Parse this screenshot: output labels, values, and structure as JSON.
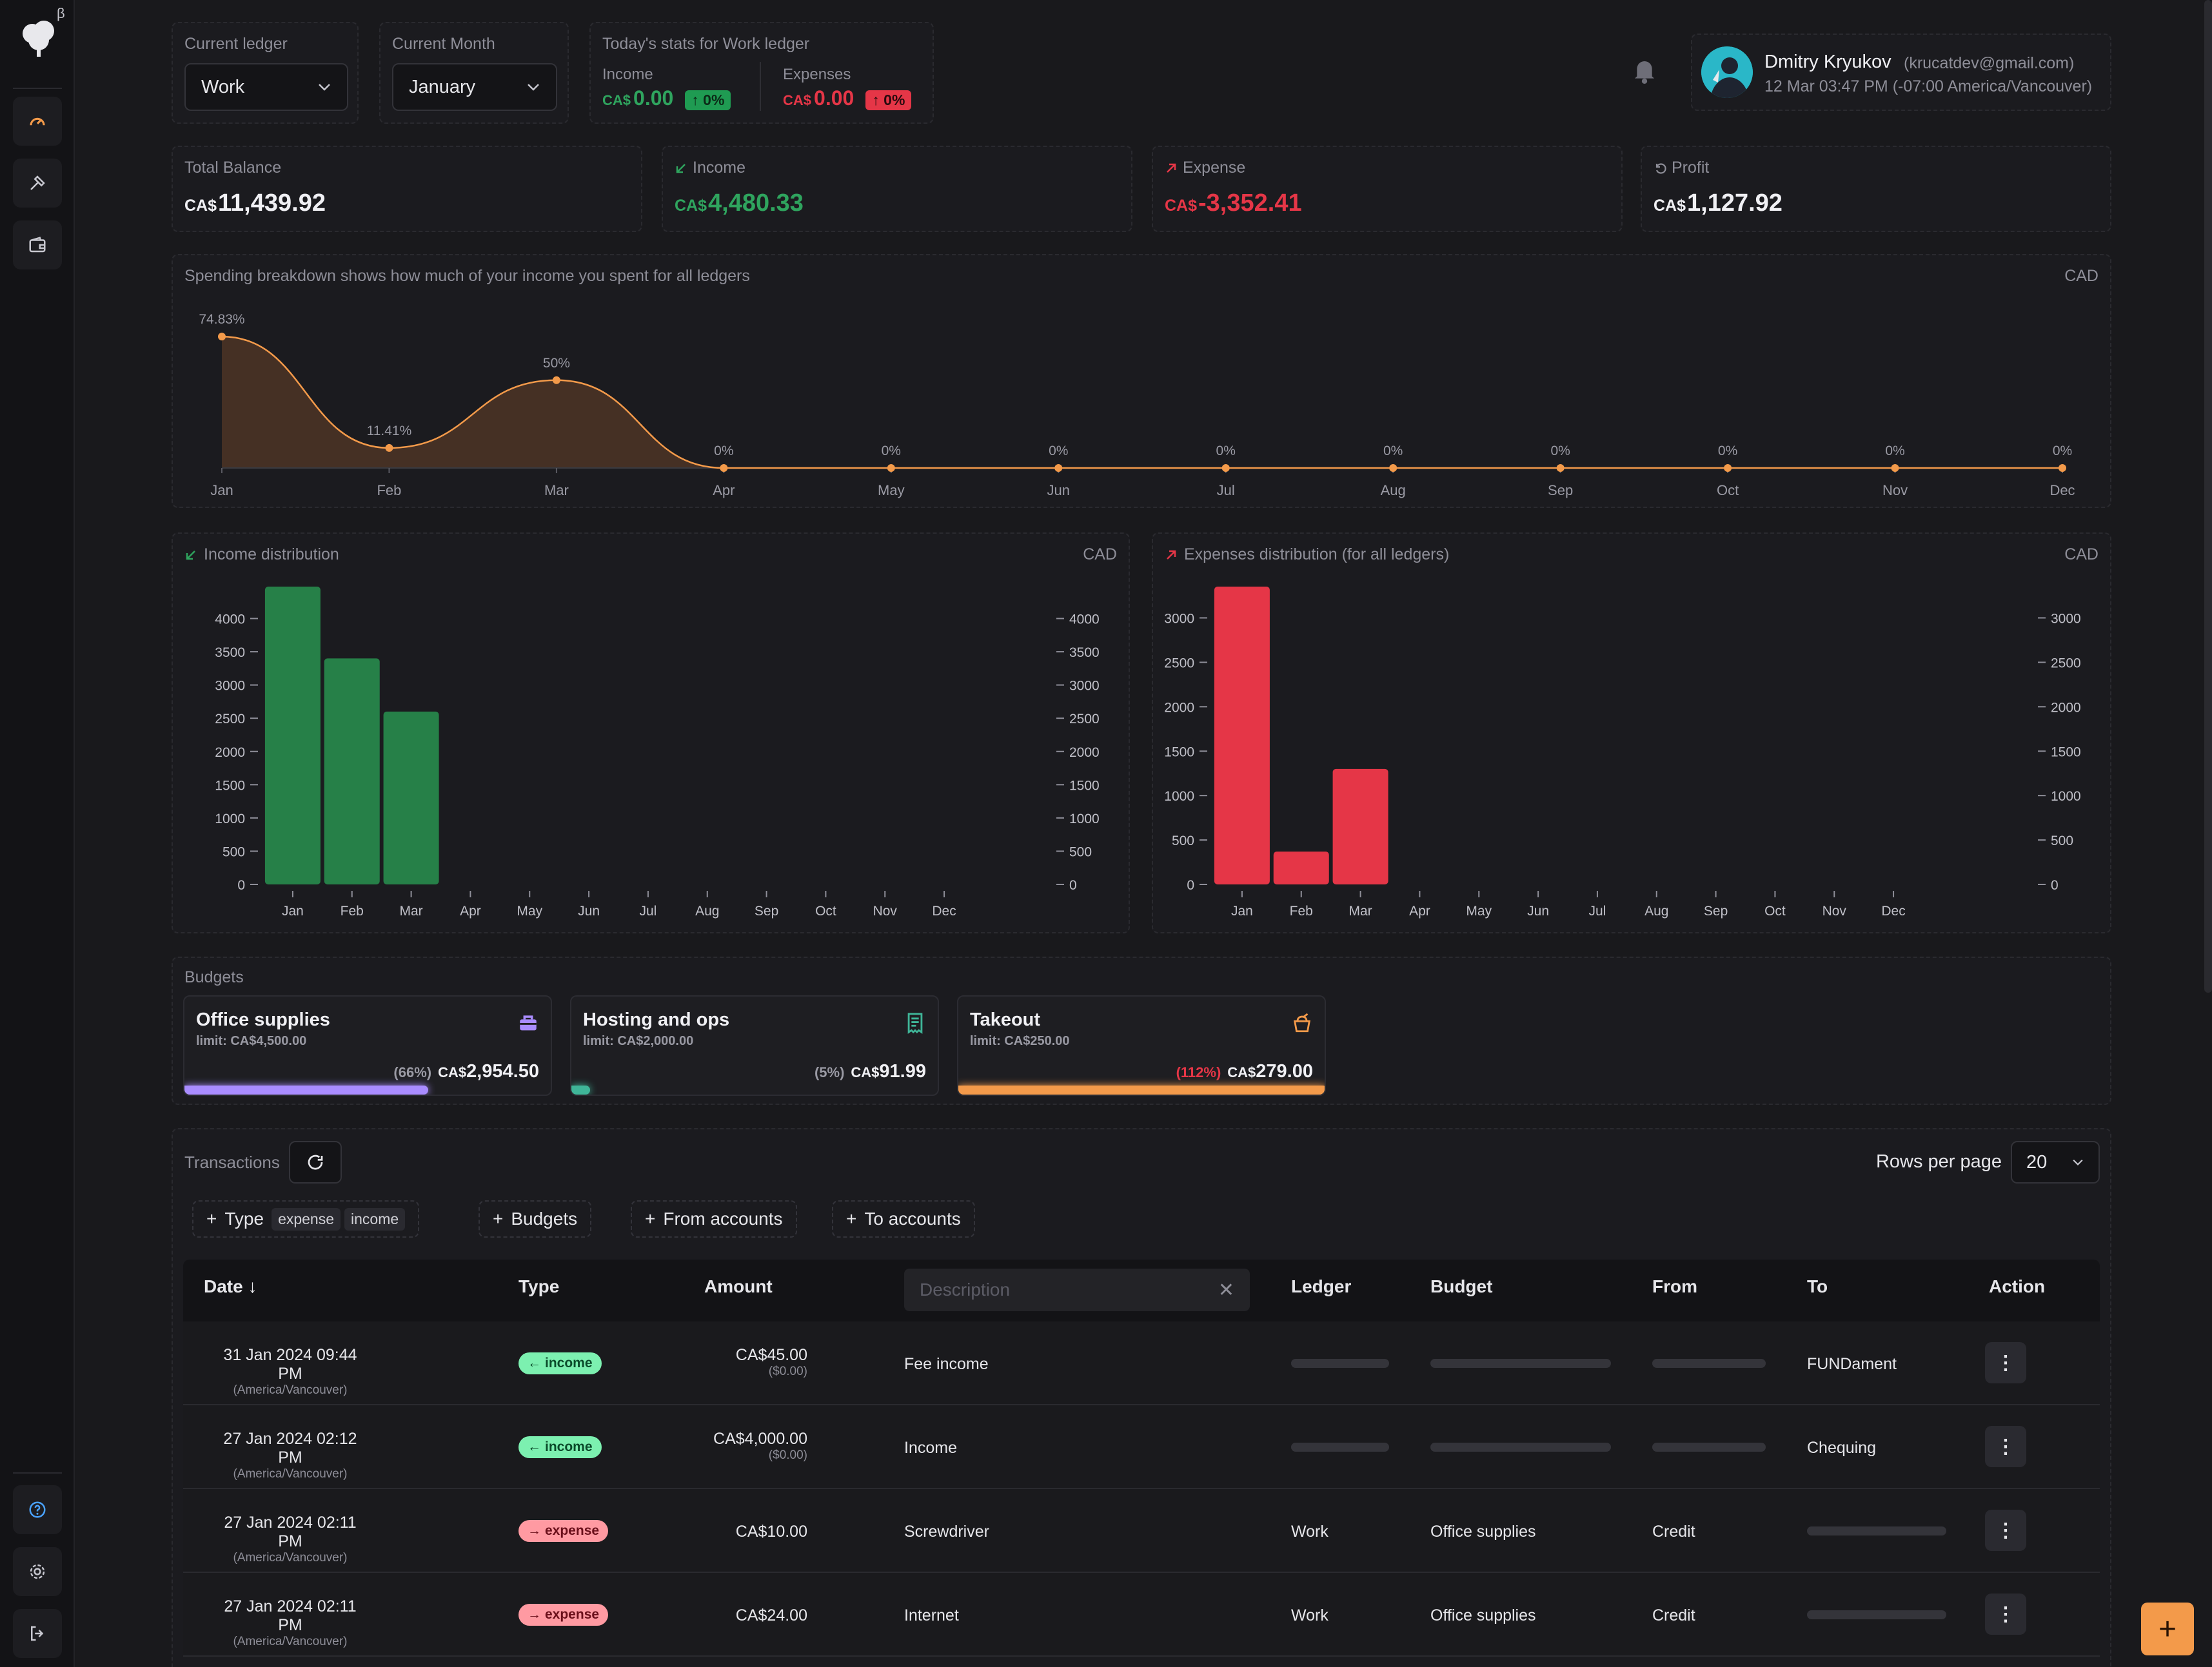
{
  "app": {
    "beta": "β"
  },
  "header": {
    "ledger": {
      "label": "Current ledger",
      "value": "Work"
    },
    "month": {
      "label": "Current Month",
      "value": "January"
    },
    "today": {
      "title": "Today's stats for Work ledger",
      "income": {
        "label": "Income",
        "currency": "CA$",
        "value": "0.00",
        "change": "↑ 0%"
      },
      "expenses": {
        "label": "Expenses",
        "currency": "CA$",
        "value": "0.00",
        "change": "↑ 0%"
      }
    },
    "user": {
      "name": "Dmitry Kryukov",
      "email": "(krucatdev@gmail.com)",
      "datetime": "12 Mar 03:47 PM (-07:00 America/Vancouver)"
    }
  },
  "summary": [
    {
      "label": "Total Balance",
      "currency": "CA$",
      "value": "11,439.92",
      "color": "#f0f0f4",
      "icon": ""
    },
    {
      "label": "Income",
      "currency": "CA$",
      "value": "4,480.33",
      "color": "#2fa45e",
      "icon": "arrow-down-left-icon"
    },
    {
      "label": "Expense",
      "currency": "CA$",
      "value": "-3,352.41",
      "color": "#e53647",
      "icon": "arrow-up-right-icon"
    },
    {
      "label": "Profit",
      "currency": "CA$",
      "value": "1,127.92",
      "color": "#f0f0f4",
      "icon": "undo-icon"
    }
  ],
  "colors": {
    "accent": "#f39a4a",
    "income": "#268048",
    "expense": "#e53647",
    "budget_purple": "#a98cff",
    "budget_teal": "#3fb598"
  },
  "chart_data": [
    {
      "type": "area",
      "title": "Spending breakdown shows how much of your income you spent for all ledgers",
      "unit": "CAD",
      "categories": [
        "Jan",
        "Feb",
        "Mar",
        "Apr",
        "May",
        "Jun",
        "Jul",
        "Aug",
        "Sep",
        "Oct",
        "Nov",
        "Dec"
      ],
      "values": [
        74.83,
        11.41,
        50,
        0,
        0,
        0,
        0,
        0,
        0,
        0,
        0,
        0
      ],
      "labels": [
        "74.83%",
        "11.41%",
        "50%",
        "0%",
        "0%",
        "0%",
        "0%",
        "0%",
        "0%",
        "0%",
        "0%",
        "0%"
      ],
      "ylim": [
        0,
        80
      ]
    },
    {
      "type": "bar",
      "title": "Income distribution",
      "unit": "CAD",
      "categories": [
        "Jan",
        "Feb",
        "Mar",
        "Apr",
        "May",
        "Jun",
        "Jul",
        "Aug",
        "Sep",
        "Oct",
        "Nov",
        "Dec"
      ],
      "values": [
        4480,
        3400,
        2600,
        0,
        0,
        0,
        0,
        0,
        0,
        0,
        0,
        0
      ],
      "ticks": [
        0,
        500,
        1000,
        1500,
        2000,
        2500,
        3000,
        3500,
        4000
      ],
      "ylim": [
        0,
        4480
      ]
    },
    {
      "type": "bar",
      "title": "Expenses distribution (for all ledgers)",
      "unit": "CAD",
      "categories": [
        "Jan",
        "Feb",
        "Mar",
        "Apr",
        "May",
        "Jun",
        "Jul",
        "Aug",
        "Sep",
        "Oct",
        "Nov",
        "Dec"
      ],
      "values": [
        3352,
        370,
        1300,
        0,
        0,
        0,
        0,
        0,
        0,
        0,
        0,
        0
      ],
      "ticks": [
        0,
        500,
        1000,
        1500,
        2000,
        2500,
        3000
      ],
      "ylim": [
        0,
        3352
      ]
    }
  ],
  "budgets": {
    "title": "Budgets",
    "items": [
      {
        "name": "Office supplies",
        "limit": "limit: CA$4,500.00",
        "percent": "(66%)",
        "currency": "CA$",
        "amount": "2,954.50",
        "fraction": 0.66,
        "color": "#a98cff",
        "icon": "briefcase-icon"
      },
      {
        "name": "Hosting and ops",
        "limit": "limit: CA$2,000.00",
        "percent": "(5%)",
        "currency": "CA$",
        "amount": "91.99",
        "fraction": 0.05,
        "color": "#3fb598",
        "icon": "receipt-icon"
      },
      {
        "name": "Takeout",
        "limit": "limit: CA$250.00",
        "percent": "(112%)",
        "currency": "CA$",
        "amount": "279.00",
        "fraction": 1.0,
        "color": "#f39a4a",
        "icon": "takeout-icon"
      }
    ]
  },
  "transactions": {
    "title": "Transactions",
    "rows_per_page_label": "Rows per page",
    "rows_per_page": "20",
    "filters": {
      "type": "Type",
      "chip_expense": "expense",
      "chip_income": "income",
      "budgets": "Budgets",
      "from": "From accounts",
      "to": "To accounts"
    },
    "columns": {
      "date": "Date ↓",
      "type": "Type",
      "amount": "Amount",
      "description_placeholder": "Description",
      "ledger": "Ledger",
      "budget": "Budget",
      "from": "From",
      "to": "To",
      "action": "Action"
    },
    "rows": [
      {
        "date": "31 Jan 2024 09:44 PM",
        "tz": "(America/Vancouver)",
        "type": "income",
        "amount": "CA$45.00",
        "sub": "($0.00)",
        "description": "Fee income",
        "ledger": "",
        "budget": "",
        "from": "",
        "to": "FUNDament"
      },
      {
        "date": "27 Jan 2024 02:12 PM",
        "tz": "(America/Vancouver)",
        "type": "income",
        "amount": "CA$4,000.00",
        "sub": "($0.00)",
        "description": "Income",
        "ledger": "",
        "budget": "",
        "from": "",
        "to": "Chequing"
      },
      {
        "date": "27 Jan 2024 02:11 PM",
        "tz": "(America/Vancouver)",
        "type": "expense",
        "amount": "CA$10.00",
        "sub": "",
        "description": "Screwdriver",
        "ledger": "Work",
        "budget": "Office supplies",
        "from": "Credit",
        "to": ""
      },
      {
        "date": "27 Jan 2024 02:11 PM",
        "tz": "(America/Vancouver)",
        "type": "expense",
        "amount": "CA$24.00",
        "sub": "",
        "description": "Internet",
        "ledger": "Work",
        "budget": "Office supplies",
        "from": "Credit",
        "to": ""
      }
    ]
  }
}
